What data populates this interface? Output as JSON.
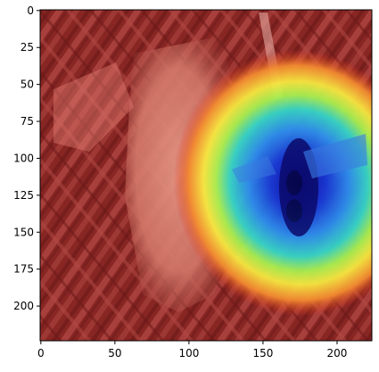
{
  "figure": {
    "background_color": "#ffffff",
    "image_description_type": "grad-cam heatmap overlay on photograph"
  },
  "axes": {
    "x_ticks": [
      {
        "value": 0,
        "label": "0"
      },
      {
        "value": 50,
        "label": "50"
      },
      {
        "value": 100,
        "label": "100"
      },
      {
        "value": 150,
        "label": "150"
      },
      {
        "value": 200,
        "label": "200"
      }
    ],
    "y_ticks": [
      {
        "value": 0,
        "label": "0"
      },
      {
        "value": 25,
        "label": "25"
      },
      {
        "value": 50,
        "label": "50"
      },
      {
        "value": 75,
        "label": "75"
      },
      {
        "value": 100,
        "label": "100"
      },
      {
        "value": 125,
        "label": "125"
      },
      {
        "value": 150,
        "label": "150"
      },
      {
        "value": 175,
        "label": "175"
      },
      {
        "value": 200,
        "label": "200"
      }
    ],
    "x_range": [
      -0.5,
      223.5
    ],
    "y_range": [
      223.5,
      -0.5
    ],
    "axis_color": "#000000"
  },
  "colors": {
    "overlay_low": "#b01515",
    "overlay_mid": "#f2f24a",
    "overlay_high": "#1010d0",
    "background_texture": "#6e3a34",
    "bark": "#d98070"
  }
}
